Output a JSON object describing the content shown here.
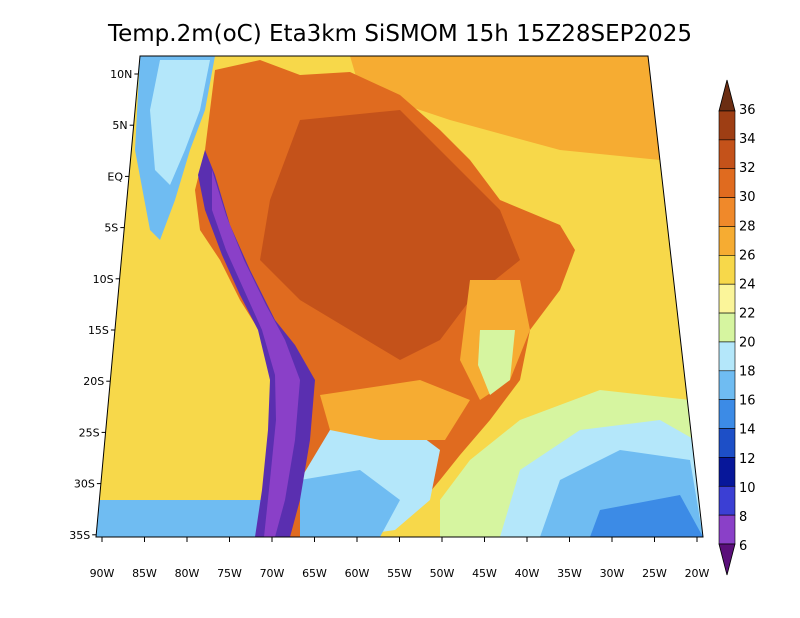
{
  "title": "Temp.2m(oC) Eta3km SiSMOM 15h 15Z28SEP2025",
  "lat_labels": [
    "10N",
    "5N",
    "EQ",
    "5S",
    "10S",
    "15S",
    "20S",
    "25S",
    "30S",
    "35S"
  ],
  "lon_labels": [
    "90W",
    "85W",
    "80W",
    "75W",
    "70W",
    "65W",
    "60W",
    "55W",
    "50W",
    "45W",
    "40W",
    "35W",
    "30W",
    "25W",
    "20W"
  ],
  "colorbar": {
    "levels": [
      "36",
      "34",
      "32",
      "30",
      "28",
      "26",
      "24",
      "22",
      "20",
      "18",
      "16",
      "14",
      "12",
      "10",
      "8",
      "6"
    ],
    "colors": [
      "#6b2d12",
      "#9e3e14",
      "#c4521a",
      "#e06b1f",
      "#f0892a",
      "#f6ac32",
      "#f7d84a",
      "#fbf59a",
      "#d6f5a0",
      "#b4e7fa",
      "#6fbcf2",
      "#3c8be6",
      "#1d4fc7",
      "#07179a",
      "#3b3fd4",
      "#8a40c8",
      "#5a0f7a"
    ]
  },
  "colors": {
    "ocean_warm": "#f7d84a",
    "ocean_cool": "#b4e7fa",
    "land_hot": "#e06b1f",
    "land_very_hot": "#c4521a",
    "andes_cold": "#5a2fb0",
    "south_cool": "#6fbcf2"
  }
}
